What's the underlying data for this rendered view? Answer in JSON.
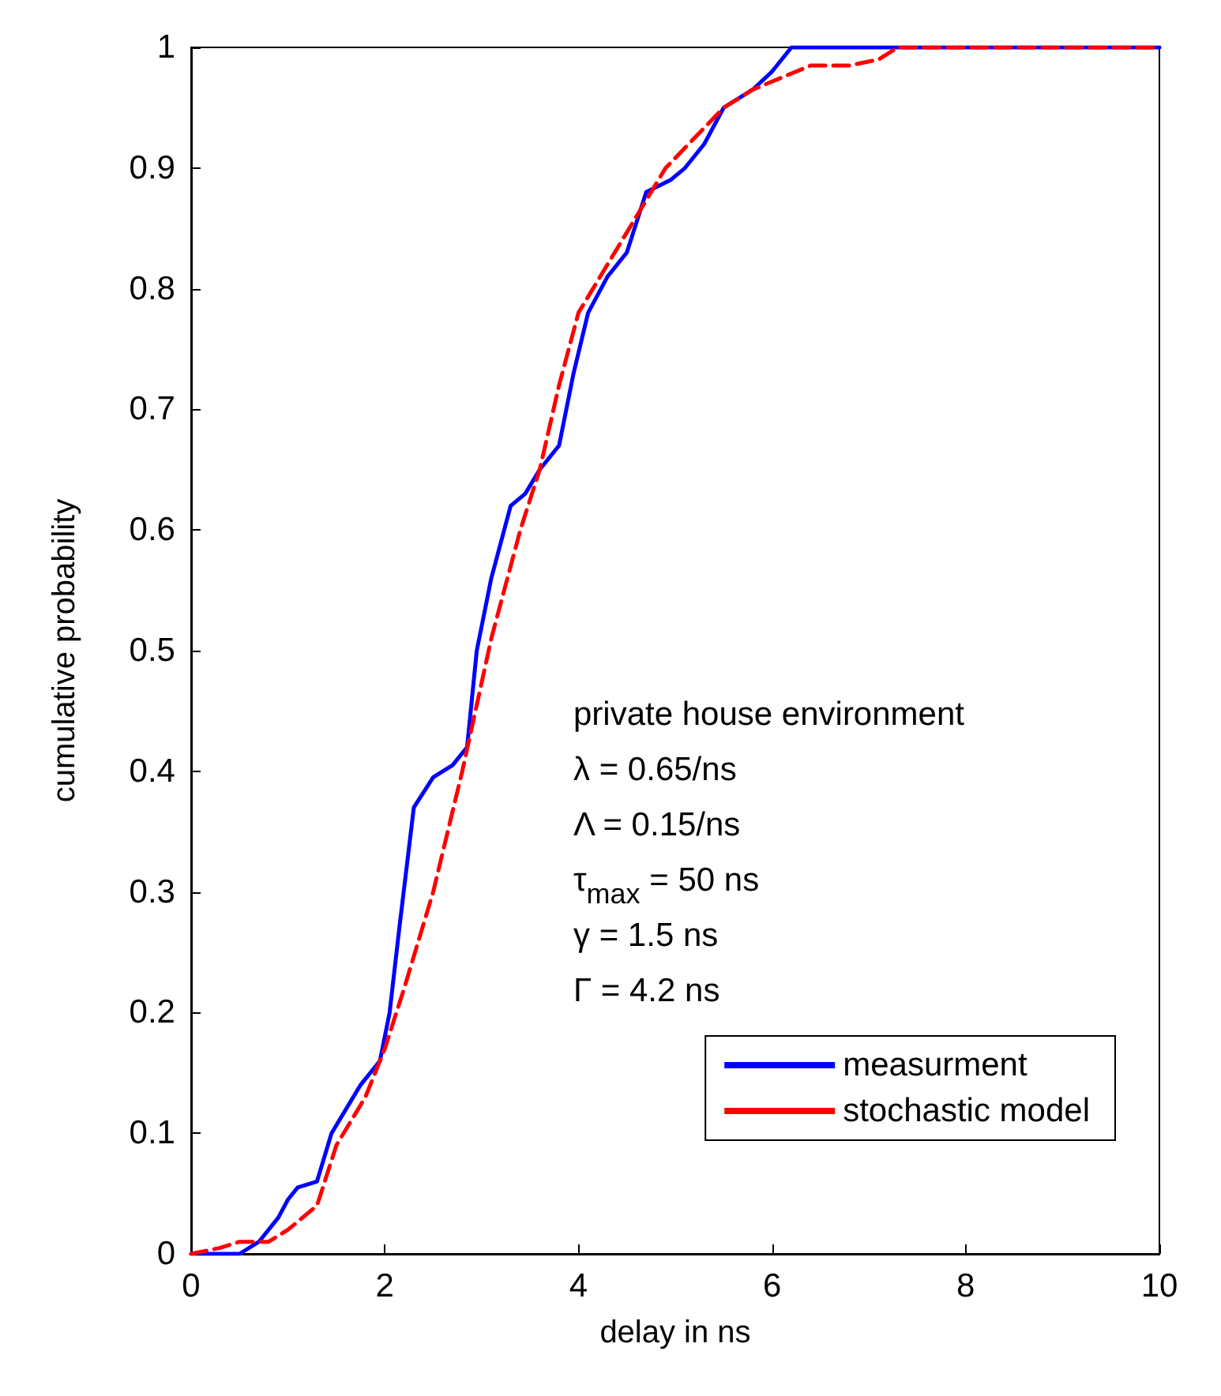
{
  "chart_data": {
    "type": "line",
    "xlabel": "delay in ns",
    "ylabel": "cumulative probability",
    "xlim": [
      0,
      10
    ],
    "xticks": [
      0,
      2,
      4,
      6,
      8,
      10
    ],
    "ylim": [
      0,
      1
    ],
    "yticks": [
      0,
      0.1,
      0.2,
      0.3,
      0.4,
      0.5,
      0.6,
      0.7,
      0.8,
      0.9,
      1
    ],
    "grid": false,
    "legend": "bottom right",
    "marker": "none",
    "series": [
      {
        "name": "measurment",
        "color": "#0000ff",
        "line_style": "solid",
        "x": [
          0,
          0.5,
          0.7,
          0.9,
          1.0,
          1.1,
          1.3,
          1.45,
          1.6,
          1.75,
          1.95,
          2.05,
          2.15,
          2.3,
          2.5,
          2.7,
          2.85,
          2.95,
          3.1,
          3.3,
          3.45,
          3.6,
          3.8,
          3.95,
          4.1,
          4.3,
          4.5,
          4.7,
          4.95,
          5.1,
          5.3,
          5.5,
          5.8,
          6.0,
          6.2,
          10
        ],
        "values": [
          0,
          0,
          0.01,
          0.03,
          0.045,
          0.055,
          0.06,
          0.1,
          0.12,
          0.14,
          0.16,
          0.2,
          0.27,
          0.37,
          0.395,
          0.405,
          0.42,
          0.5,
          0.56,
          0.62,
          0.63,
          0.65,
          0.67,
          0.73,
          0.78,
          0.81,
          0.83,
          0.88,
          0.89,
          0.9,
          0.92,
          0.95,
          0.965,
          0.98,
          1,
          1
        ]
      },
      {
        "name": "stochastic model",
        "color": "#ff0000",
        "line_style": "dashed",
        "x": [
          0,
          0.3,
          0.5,
          0.8,
          1.0,
          1.3,
          1.5,
          1.8,
          2.0,
          2.2,
          2.5,
          2.8,
          3.1,
          3.4,
          3.6,
          3.8,
          4.0,
          4.3,
          4.6,
          4.9,
          5.2,
          5.5,
          5.8,
          6.1,
          6.4,
          6.8,
          7.1,
          7.3,
          10
        ],
        "values": [
          0,
          0.005,
          0.01,
          0.01,
          0.02,
          0.04,
          0.09,
          0.13,
          0.17,
          0.22,
          0.3,
          0.4,
          0.51,
          0.6,
          0.65,
          0.72,
          0.78,
          0.82,
          0.86,
          0.9,
          0.925,
          0.95,
          0.965,
          0.975,
          0.985,
          0.985,
          0.99,
          1,
          1
        ]
      }
    ],
    "annotations": [
      "private house environment",
      "λ = 0.65/ns",
      "Λ = 0.15/ns",
      "τ$_{max}$ = 50 ns",
      "γ = 1.5 ns",
      "Γ = 4.2 ns"
    ]
  }
}
